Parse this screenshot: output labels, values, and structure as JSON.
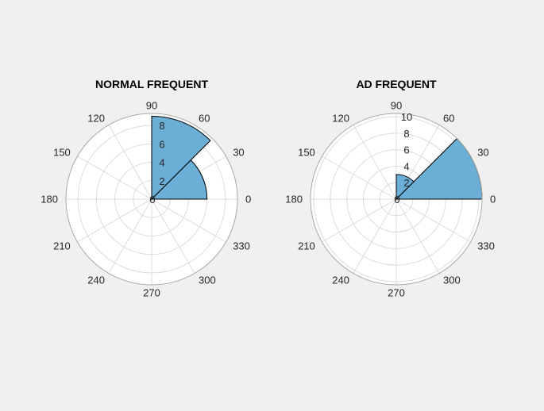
{
  "figure": {
    "background": "#f0f0f0"
  },
  "chart_data": [
    {
      "type": "polar-histogram",
      "title": "NORMAL FREQUENT",
      "theta_ticks": [
        "0",
        "30",
        "60",
        "90",
        "120",
        "150",
        "180",
        "210",
        "240",
        "270",
        "300",
        "330"
      ],
      "r_ticks": [
        "0",
        "2",
        "4",
        "6",
        "8"
      ],
      "rlim": [
        0,
        9.3
      ],
      "grid": true,
      "bar_color": "#6baed6",
      "bins": [
        {
          "theta_start": 0,
          "theta_end": 45,
          "value": 6
        },
        {
          "theta_start": 45,
          "theta_end": 90,
          "value": 9
        }
      ]
    },
    {
      "type": "polar-histogram",
      "title": "AD FREQUENT",
      "theta_ticks": [
        "0",
        "30",
        "60",
        "90",
        "120",
        "150",
        "180",
        "210",
        "240",
        "270",
        "300",
        "330"
      ],
      "r_ticks": [
        "0",
        "2",
        "4",
        "6",
        "8",
        "10"
      ],
      "rlim": [
        0,
        10.4
      ],
      "grid": true,
      "bar_color": "#6baed6",
      "bins": [
        {
          "theta_start": 0,
          "theta_end": 45,
          "value": 10.4
        },
        {
          "theta_start": 45,
          "theta_end": 90,
          "value": 3
        }
      ]
    }
  ]
}
